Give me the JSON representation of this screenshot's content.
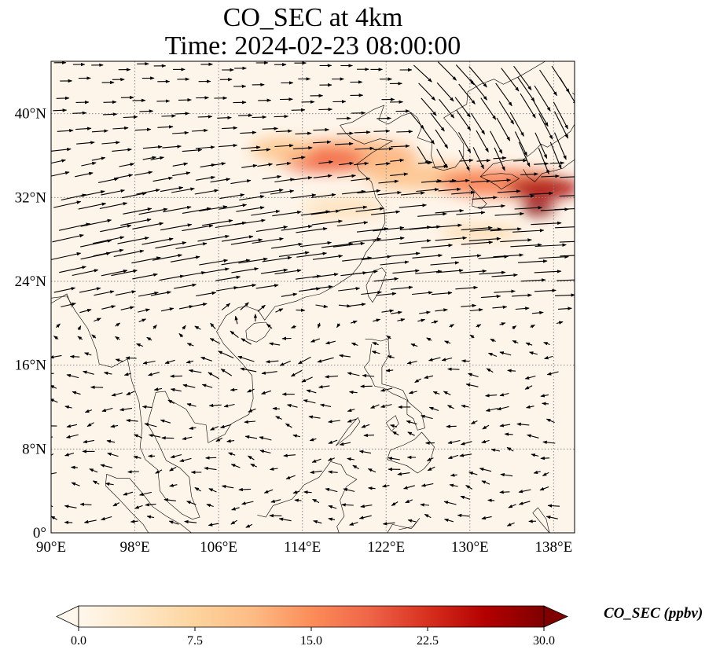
{
  "title": {
    "line1": "CO_SEC at 4km",
    "line2": "Time: 2024-02-23 08:00:00"
  },
  "map": {
    "projection": "PlateCarree",
    "extent_lon": [
      90,
      140
    ],
    "extent_lat": [
      0,
      45
    ],
    "lat_ticks": [
      {
        "value": 0,
        "label": "0°"
      },
      {
        "value": 8,
        "label": "8°N"
      },
      {
        "value": 16,
        "label": "16°N"
      },
      {
        "value": 24,
        "label": "24°N"
      },
      {
        "value": 32,
        "label": "32°N"
      },
      {
        "value": 40,
        "label": "40°N"
      }
    ],
    "lon_ticks": [
      {
        "value": 90,
        "label": "90°E"
      },
      {
        "value": 98,
        "label": "98°E"
      },
      {
        "value": 106,
        "label": "106°E"
      },
      {
        "value": 114,
        "label": "114°E"
      },
      {
        "value": 122,
        "label": "122°E"
      },
      {
        "value": 130,
        "label": "130°E"
      },
      {
        "value": 138,
        "label": "138°E"
      }
    ],
    "gridlines": true,
    "field": {
      "variable": "CO_SEC",
      "level": "4km",
      "background_color": "#fef5ea",
      "plumes": [
        {
          "lon": 118,
          "lat": 36.0,
          "rx": 7.0,
          "ry": 1.6,
          "value": 12
        },
        {
          "lon": 116,
          "lat": 35.6,
          "rx": 4.0,
          "ry": 1.2,
          "value": 18
        },
        {
          "lon": 126,
          "lat": 34.0,
          "rx": 6.0,
          "ry": 1.3,
          "value": 10
        },
        {
          "lon": 133,
          "lat": 33.4,
          "rx": 6.0,
          "ry": 1.4,
          "value": 16
        },
        {
          "lon": 137,
          "lat": 32.9,
          "rx": 3.5,
          "ry": 1.0,
          "value": 27
        },
        {
          "lon": 136.5,
          "lat": 31.0,
          "rx": 1.6,
          "ry": 0.7,
          "value": 30
        },
        {
          "lon": 112,
          "lat": 36.6,
          "rx": 3.0,
          "ry": 1.2,
          "value": 9
        },
        {
          "lon": 131,
          "lat": 28.7,
          "rx": 4.0,
          "ry": 0.6,
          "value": 7
        },
        {
          "lon": 118,
          "lat": 31.0,
          "rx": 4.0,
          "ry": 1.0,
          "value": 5
        }
      ]
    },
    "wind_vectors": "streamline-style arrows: strong westerly jet near 20–35°N, weak scattered flow south of 16°N"
  },
  "colorbar": {
    "label": "CO_SEC (ppbv)",
    "vmin": 0.0,
    "vmax": 30.0,
    "extend": "both",
    "ticks": [
      "0.0",
      "7.5",
      "15.0",
      "22.5",
      "30.0"
    ],
    "colormap": "OrRd",
    "colors": [
      "#fff7ec",
      "#fee8c8",
      "#fdd49e",
      "#fdbb84",
      "#fc8d59",
      "#ef6548",
      "#d7301f",
      "#b30000",
      "#7f0000"
    ]
  }
}
